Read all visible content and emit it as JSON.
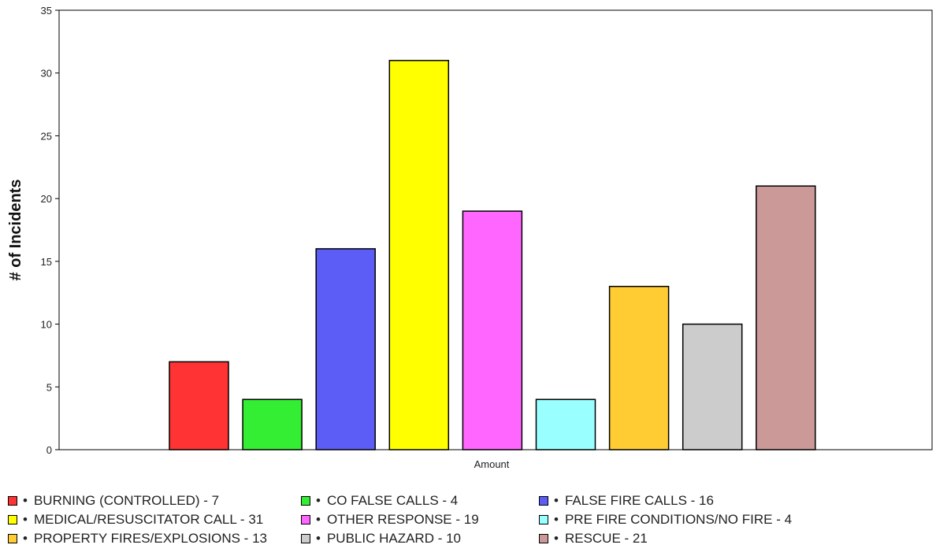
{
  "chart_data": {
    "type": "bar",
    "title": "",
    "ylabel": "# of Incidents",
    "xlabel": "Amount",
    "ylim": [
      0,
      35
    ],
    "yticks": [
      0,
      5,
      10,
      15,
      20,
      25,
      30,
      35
    ],
    "grid": false,
    "legend_position": "bottom",
    "categories": [
      "BURNING (CONTROLLED)",
      "CO FALSE CALLS",
      "FALSE FIRE CALLS",
      "MEDICAL/RESUSCITATOR CALL",
      "OTHER RESPONSE",
      "PRE FIRE CONDITIONS/NO FIRE",
      "PROPERTY FIRES/EXPLOSIONS",
      "PUBLIC HAZARD",
      "RESCUE"
    ],
    "values": [
      7,
      4,
      16,
      31,
      19,
      4,
      13,
      10,
      21
    ],
    "colors": [
      "#ff3333",
      "#33ee33",
      "#5c5cf6",
      "#ffff00",
      "#ff66ff",
      "#99ffff",
      "#ffcc33",
      "#cccccc",
      "#cc9999"
    ]
  },
  "legend": {
    "rows": [
      [
        "BURNING (CONTROLLED) - 7",
        "CO FALSE CALLS - 4",
        "FALSE FIRE CALLS - 16"
      ],
      [
        "MEDICAL/RESUSCITATOR CALL - 31",
        "OTHER RESPONSE - 19",
        "PRE FIRE CONDITIONS/NO FIRE - 4"
      ],
      [
        "PROPERTY FIRES/EXPLOSIONS - 13",
        "PUBLIC HAZARD - 10",
        "RESCUE - 21"
      ]
    ],
    "bullet": "•"
  }
}
